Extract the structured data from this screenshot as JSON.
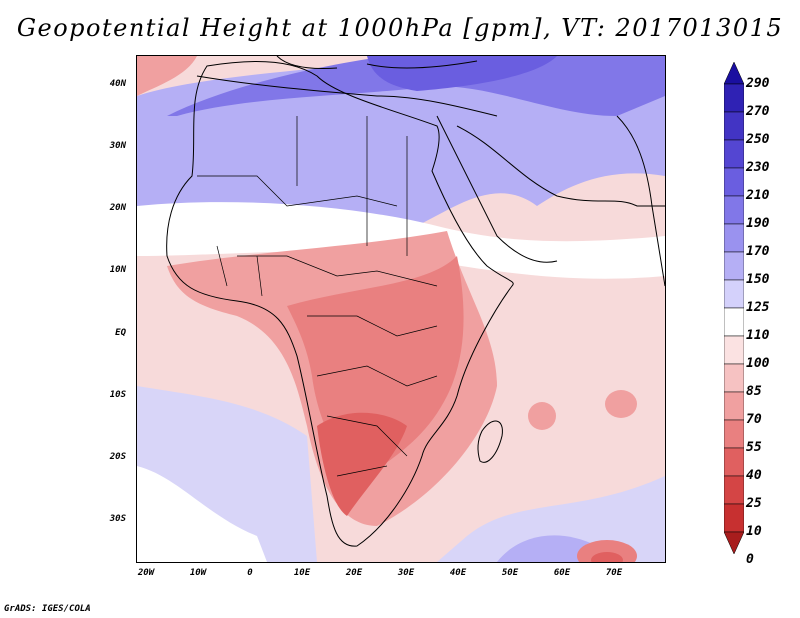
{
  "title": "Geopotential Height at 1000hPa [gpm], VT: 2017013015",
  "credit": "GrADS: IGES/COLA",
  "map": {
    "lat_labels": [
      "40N",
      "30N",
      "20N",
      "10N",
      "EQ",
      "10S",
      "20S",
      "30S"
    ],
    "lon_labels": [
      "20W",
      "10W",
      "0",
      "10E",
      "20E",
      "30E",
      "40E",
      "50E",
      "60E",
      "70E"
    ],
    "lon_range": [
      -21,
      80
    ],
    "lat_range": [
      -37,
      45
    ]
  },
  "colorbar": {
    "labels": [
      "290",
      "270",
      "250",
      "230",
      "210",
      "190",
      "170",
      "150",
      "125",
      "110",
      "100",
      "85",
      "70",
      "55",
      "40",
      "25",
      "10",
      "0"
    ],
    "colors": [
      "#1a0fa0",
      "#2f22b4",
      "#4234c4",
      "#5446d2",
      "#6a5ee0",
      "#8177e8",
      "#9a92ef",
      "#b5aff5",
      "#d4d1fb",
      "#ffffff",
      "#fbe2e2",
      "#f6c2c2",
      "#f0a0a0",
      "#e98080",
      "#e06060",
      "#d44545",
      "#c73030",
      "#a81d1d"
    ]
  }
}
